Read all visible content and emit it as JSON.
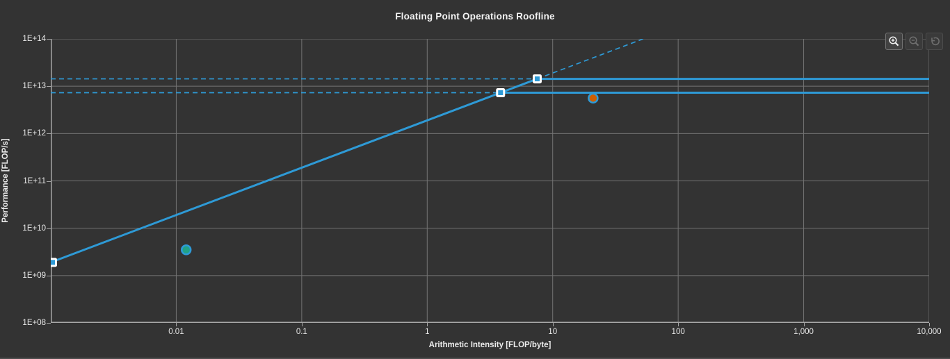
{
  "colors": {
    "background": "#333333",
    "grid": "#747474",
    "axis": "#a8a8a8",
    "text": "#f2f2f2",
    "roofline_blue": "#2e9ad6",
    "marker_square_fill": "#2e9ad6",
    "marker_square_border": "#ffffff",
    "teal_point": "#21a287",
    "orange_point": "#ce5e00"
  },
  "toolbar": {
    "zoom_in": {
      "icon": "magnifier-plus-icon",
      "enabled": true
    },
    "zoom_out": {
      "icon": "magnifier-minus-icon",
      "enabled": false
    },
    "reset_view": {
      "icon": "rotate-ccw-icon",
      "enabled": false
    }
  },
  "chart_data": {
    "type": "line",
    "subtype": "roofline",
    "title": "Floating Point Operations Roofline",
    "xlabel": "Arithmetic Intensity [FLOP/byte]",
    "ylabel": "Performance [FLOP/s]",
    "x_scale": "log",
    "y_scale": "log",
    "xlim": [
      0.001,
      10000
    ],
    "ylim": [
      100000000.0,
      100000000000000.0
    ],
    "grid": true,
    "x_ticks": [
      {
        "value": 0.01,
        "label": "0.01"
      },
      {
        "value": 0.1,
        "label": "0.1"
      },
      {
        "value": 1,
        "label": "1"
      },
      {
        "value": 10,
        "label": "10"
      },
      {
        "value": 100,
        "label": "100"
      },
      {
        "value": 1000,
        "label": "1,000"
      },
      {
        "value": 10000,
        "label": "10,000"
      }
    ],
    "y_ticks": [
      {
        "value": 100000000000000.0,
        "label": "1E+14"
      },
      {
        "value": 10000000000000.0,
        "label": "1E+13"
      },
      {
        "value": 1000000000000.0,
        "label": "1E+12"
      },
      {
        "value": 100000000000.0,
        "label": "1E+11"
      },
      {
        "value": 10000000000.0,
        "label": "1E+10"
      },
      {
        "value": 1000000000.0,
        "label": "1E+09"
      },
      {
        "value": 100000000.0,
        "label": "1E+08"
      }
    ],
    "memory_roofline": {
      "bandwidth_bytes_per_sec": 1900000000000.0,
      "style": "solid-below-ridge-dashed-above"
    },
    "compute_rooflines": [
      {
        "peak_flops_per_sec": 14300000000000.0,
        "ridge_ai": 7.5,
        "style": "solid-right-of-ridge-dashed-left"
      },
      {
        "peak_flops_per_sec": 7300000000000.0,
        "ridge_ai": 3.85,
        "style": "solid-right-of-ridge-dashed-left"
      }
    ],
    "achieved_points": [
      {
        "name": "teal-point",
        "ai": 0.012,
        "flops_per_sec": 3500000000.0,
        "color": "#21a287"
      },
      {
        "name": "orange-point",
        "ai": 21,
        "flops_per_sec": 5600000000000.0,
        "color": "#ce5e00"
      }
    ]
  }
}
